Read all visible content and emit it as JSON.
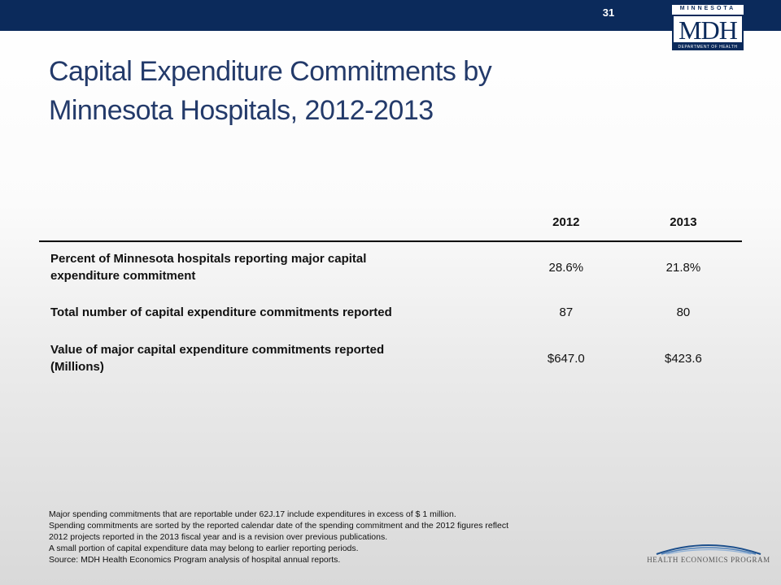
{
  "header": {
    "page_number": "31",
    "logo": {
      "top_text": "MINNESOTA",
      "main_text": "MDH",
      "bottom_text": "DEPARTMENT OF HEALTH"
    }
  },
  "title": {
    "line1": "Capital Expenditure Commitments by",
    "line2": "Minnesota Hospitals, 2012-2013"
  },
  "table": {
    "columns": [
      "",
      "2012",
      "2013"
    ],
    "rows": [
      {
        "label_line1": "Percent of Minnesota hospitals reporting major capital",
        "label_line2": "expenditure commitment",
        "v2012": "28.6%",
        "v2013": "21.8%"
      },
      {
        "label_line1": "Total number of capital expenditure commitments reported",
        "label_line2": "",
        "v2012": "87",
        "v2013": "80"
      },
      {
        "label_line1": "Value of major capital expenditure commitments reported",
        "label_line2": "(Millions)",
        "v2012": "$647.0",
        "v2013": "$423.6"
      }
    ]
  },
  "footnotes": [
    "Major spending commitments that are reportable under 62J.17 include expenditures in excess of $ 1 million.",
    "Spending commitments are sorted by the reported calendar date of the spending commitment and the 2012 figures reflect",
    "2012 projects reported in the 2013 fiscal year and is a revision over previous publications.",
    "A small portion of capital expenditure data may belong to earlier reporting periods.",
    "Source:  MDH Health Economics Program analysis of hospital annual reports."
  ],
  "footer_logo": {
    "text": "HEALTH ECONOMICS PROGRAM"
  },
  "colors": {
    "topbar": "#0b2a5b",
    "title": "#233a6a"
  }
}
